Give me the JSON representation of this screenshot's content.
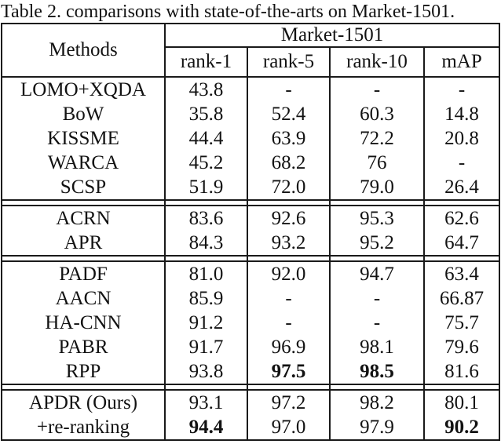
{
  "title": "Table 2. comparisons with state-of-the-arts on Market-1501.",
  "table": {
    "corner_header": "Methods",
    "dataset_header": "Market-1501",
    "sub_columns": [
      "rank-1",
      "rank-5",
      "rank-10",
      "mAP"
    ],
    "groups": [
      {
        "rows": [
          {
            "method": "LOMO+XQDA",
            "values": [
              "43.8",
              "-",
              "-",
              "-"
            ],
            "bold": []
          },
          {
            "method": "BoW",
            "values": [
              "35.8",
              "52.4",
              "60.3",
              "14.8"
            ],
            "bold": []
          },
          {
            "method": "KISSME",
            "values": [
              "44.4",
              "63.9",
              "72.2",
              "20.8"
            ],
            "bold": []
          },
          {
            "method": "WARCA",
            "values": [
              "45.2",
              "68.2",
              "76",
              "-"
            ],
            "bold": []
          },
          {
            "method": "SCSP",
            "values": [
              "51.9",
              "72.0",
              "79.0",
              "26.4"
            ],
            "bold": []
          }
        ]
      },
      {
        "rows": [
          {
            "method": "ACRN",
            "values": [
              "83.6",
              "92.6",
              "95.3",
              "62.6"
            ],
            "bold": []
          },
          {
            "method": "APR",
            "values": [
              "84.3",
              "93.2",
              "95.2",
              "64.7"
            ],
            "bold": []
          }
        ]
      },
      {
        "rows": [
          {
            "method": "PADF",
            "values": [
              "81.0",
              "92.0",
              "94.7",
              "63.4"
            ],
            "bold": []
          },
          {
            "method": "AACN",
            "values": [
              "85.9",
              "-",
              "-",
              "66.87"
            ],
            "bold": []
          },
          {
            "method": "HA-CNN",
            "values": [
              "91.2",
              "-",
              "-",
              "75.7"
            ],
            "bold": []
          },
          {
            "method": "PABR",
            "values": [
              "91.7",
              "96.9",
              "98.1",
              "79.6"
            ],
            "bold": []
          },
          {
            "method": "RPP",
            "values": [
              "93.8",
              "97.5",
              "98.5",
              "81.6"
            ],
            "bold": [
              1,
              2
            ]
          }
        ]
      },
      {
        "rows": [
          {
            "method": "APDR (Ours)",
            "values": [
              "93.1",
              "97.2",
              "98.2",
              "80.1"
            ],
            "bold": []
          },
          {
            "method": "+re-ranking",
            "values": [
              "94.4",
              "97.0",
              "97.9",
              "90.2"
            ],
            "bold": [
              0,
              3
            ]
          }
        ]
      }
    ]
  },
  "colors": {
    "text": "#121212",
    "border": "#1a1a1a",
    "background": "#ffffff"
  }
}
